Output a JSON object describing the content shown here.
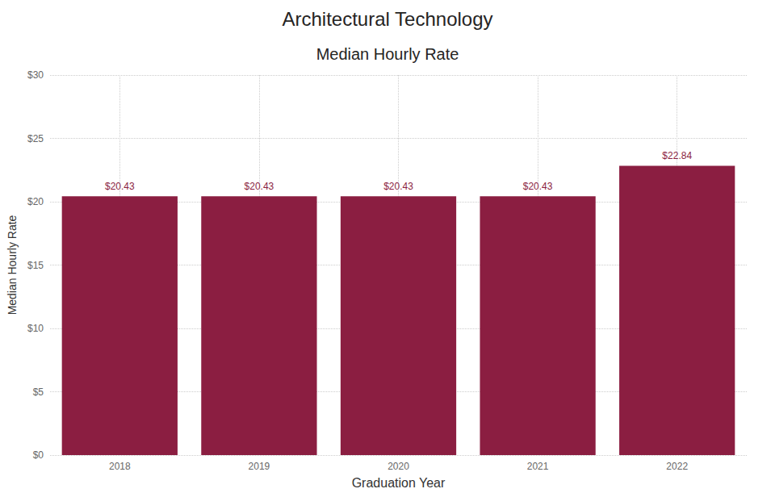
{
  "chart_data": {
    "type": "bar",
    "title": "Architectural Technology",
    "subtitle": "Median Hourly Rate",
    "x_label": "Graduation Year",
    "y_label": "Median Hourly Rate",
    "categories": [
      "2018",
      "2019",
      "2020",
      "2021",
      "2022"
    ],
    "values": [
      20.43,
      20.43,
      20.43,
      20.43,
      22.84
    ],
    "value_labels": [
      "$20.43",
      "$20.43",
      "$20.43",
      "$20.43",
      "$22.84"
    ],
    "color": "#8b1e41",
    "ylim": [
      0,
      30
    ],
    "yticks": [
      {
        "value": 0,
        "label": "$0"
      },
      {
        "value": 5,
        "label": "$5"
      },
      {
        "value": 10,
        "label": "$10"
      },
      {
        "value": 15,
        "label": "$15"
      },
      {
        "value": 20,
        "label": "$20"
      },
      {
        "value": 25,
        "label": "$25"
      },
      {
        "value": 30,
        "label": "$30"
      }
    ],
    "grid": true,
    "data_labels": true
  }
}
